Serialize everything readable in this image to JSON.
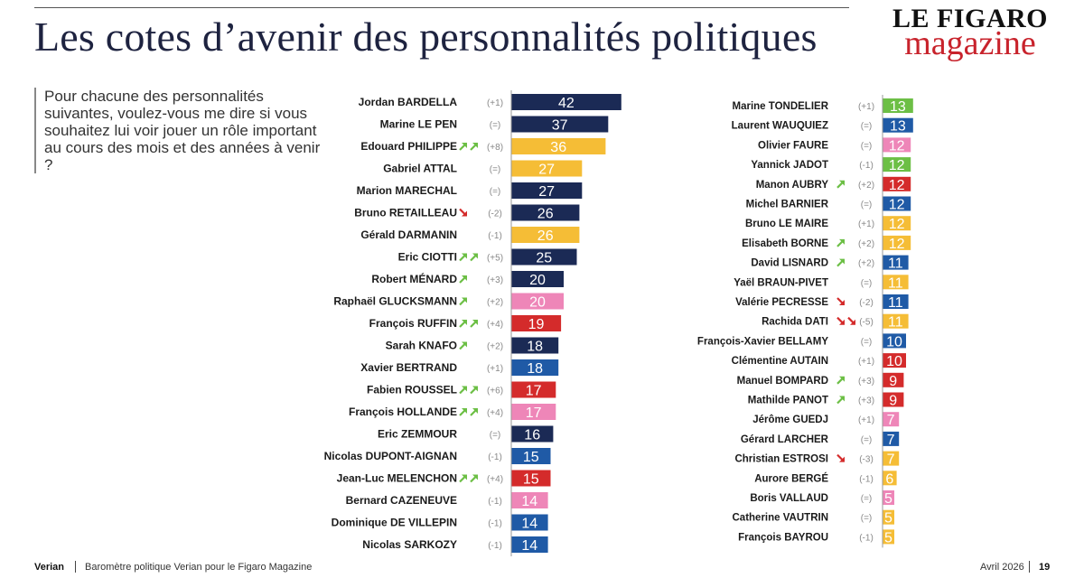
{
  "header": {
    "title": "Les cotes d’avenir des personnalités politiques",
    "logo_top": "LE FIGARO",
    "logo_bottom": "magazine"
  },
  "question": "Pour chacune des personnalités suivantes, voulez-vous me dire si vous souhaitez lui voir jouer un rôle important au cours des mois et des années à venir ?",
  "footer": {
    "brand": "Verian",
    "source": "Baromètre politique Verian pour le Figaro Magazine",
    "date": "Avril 2026",
    "page": "19"
  },
  "colors": {
    "navy": "#1b2a55",
    "blue": "#1f5aa6",
    "yellow": "#f5bd36",
    "pink": "#ee86b8",
    "red": "#d42b2b",
    "green": "#6cbf45",
    "up_arrow": "#6cbf45",
    "down_arrow": "#d42b2b"
  },
  "icons": {
    "up": "arrow-up-right-icon",
    "down": "arrow-down-right-icon"
  },
  "chart_data": [
    {
      "type": "bar",
      "orientation": "horizontal",
      "xlim": [
        0,
        42
      ],
      "categories": [
        "Jordan BARDELLA",
        "Marine LE PEN",
        "Edouard PHILIPPE",
        "Gabriel ATTAL",
        "Marion MARECHAL",
        "Bruno RETAILLEAU",
        "Gérald DARMANIN",
        "Eric CIOTTI",
        "Robert MÉNARD",
        "Raphaël GLUCKSMANN",
        "François RUFFIN",
        "Sarah KNAFO",
        "Xavier BERTRAND",
        "Fabien ROUSSEL",
        "François HOLLANDE",
        "Eric ZEMMOUR",
        "Nicolas DUPONT-AIGNAN",
        "Jean-Luc MELENCHON",
        "Bernard CAZENEUVE",
        "Dominique DE VILLEPIN",
        "Nicolas SARKOZY"
      ],
      "values": [
        42,
        37,
        36,
        27,
        27,
        26,
        26,
        25,
        20,
        20,
        19,
        18,
        18,
        17,
        17,
        16,
        15,
        15,
        14,
        14,
        14
      ],
      "changes": [
        "(+1)",
        "(=)",
        "(+8)",
        "(=)",
        "(=)",
        "(-2)",
        "(-1)",
        "(+5)",
        "(+3)",
        "(+2)",
        "(+4)",
        "(+2)",
        "(+1)",
        "(+6)",
        "(+4)",
        "(=)",
        "(-1)",
        "(+4)",
        "(-1)",
        "(-1)",
        "(-1)"
      ],
      "trend": [
        "",
        "",
        "up2",
        "",
        "",
        "down1",
        "",
        "up2",
        "up1",
        "up1",
        "up2",
        "up1",
        "",
        "up2",
        "up2",
        "",
        "",
        "up2",
        "",
        "",
        ""
      ],
      "bar_colors": [
        "navy",
        "navy",
        "yellow",
        "yellow",
        "navy",
        "navy",
        "yellow",
        "navy",
        "navy",
        "pink",
        "red",
        "navy",
        "blue",
        "red",
        "pink",
        "navy",
        "blue",
        "red",
        "pink",
        "blue",
        "blue"
      ]
    },
    {
      "type": "bar",
      "orientation": "horizontal",
      "xlim": [
        0,
        42
      ],
      "categories": [
        "Marine TONDELIER",
        "Laurent WAUQUIEZ",
        "Olivier FAURE",
        "Yannick JADOT",
        "Manon AUBRY",
        "Michel BARNIER",
        "Bruno LE MAIRE",
        "Elisabeth BORNE",
        "David LISNARD",
        "Yaël BRAUN-PIVET",
        "Valérie PECRESSE",
        "Rachida DATI",
        "François-Xavier BELLAMY",
        "Clémentine AUTAIN",
        "Manuel BOMPARD",
        "Mathilde PANOT",
        "Jérôme GUEDJ",
        "Gérard LARCHER",
        "Christian ESTROSI",
        "Aurore BERGÉ",
        "Boris VALLAUD",
        "Catherine VAUTRIN",
        "François BAYROU"
      ],
      "values": [
        13,
        13,
        12,
        12,
        12,
        12,
        12,
        12,
        11,
        11,
        11,
        11,
        10,
        10,
        9,
        9,
        7,
        7,
        7,
        6,
        5,
        5,
        5
      ],
      "changes": [
        "(+1)",
        "(=)",
        "(=)",
        "(-1)",
        "(+2)",
        "(=)",
        "(+1)",
        "(+2)",
        "(+2)",
        "(=)",
        "(-2)",
        "(-5)",
        "(=)",
        "(+1)",
        "(+3)",
        "(+3)",
        "(+1)",
        "(=)",
        "(-3)",
        "(-1)",
        "(=)",
        "(=)",
        "(-1)"
      ],
      "trend": [
        "",
        "",
        "",
        "",
        "up1",
        "",
        "",
        "up1",
        "up1",
        "",
        "down1",
        "down2",
        "",
        "",
        "up1",
        "up1",
        "",
        "",
        "down1",
        "",
        "",
        "",
        ""
      ],
      "bar_colors": [
        "green",
        "blue",
        "pink",
        "green",
        "red",
        "blue",
        "yellow",
        "yellow",
        "blue",
        "yellow",
        "blue",
        "yellow",
        "blue",
        "red",
        "red",
        "red",
        "pink",
        "blue",
        "yellow",
        "yellow",
        "pink",
        "yellow",
        "yellow"
      ]
    }
  ]
}
